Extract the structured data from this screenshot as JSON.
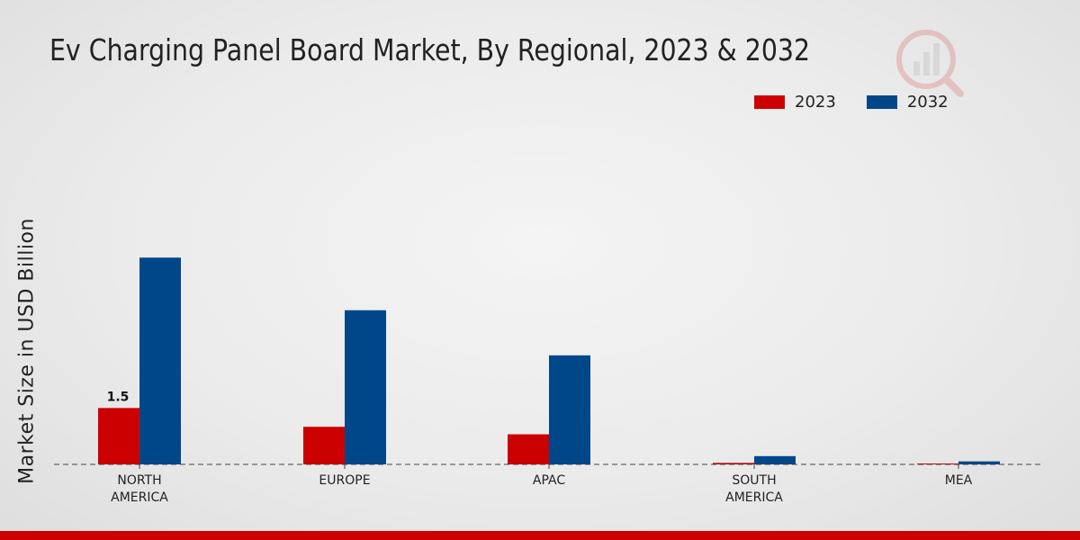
{
  "chart_data": {
    "type": "bar",
    "title": "Ev Charging Panel Board Market, By Regional, 2023 & 2032",
    "xlabel": "",
    "ylabel": "Market Size in USD Billion",
    "categories": [
      "NORTH\nAMERICA",
      "EUROPE",
      "APAC",
      "SOUTH\nAMERICA",
      "MEA"
    ],
    "series": [
      {
        "name": "2023",
        "color": "#cc0000",
        "values": [
          1.5,
          1.0,
          0.8,
          0.04,
          0.02
        ]
      },
      {
        "name": "2032",
        "color": "#00478a",
        "values": [
          5.5,
          4.1,
          2.9,
          0.22,
          0.08
        ]
      }
    ],
    "data_labels": [
      {
        "series": "2023",
        "category_index": 0,
        "text": "1.5"
      }
    ],
    "ylim": [
      0,
      9.0
    ],
    "grid": false,
    "legend": "top-right"
  }
}
